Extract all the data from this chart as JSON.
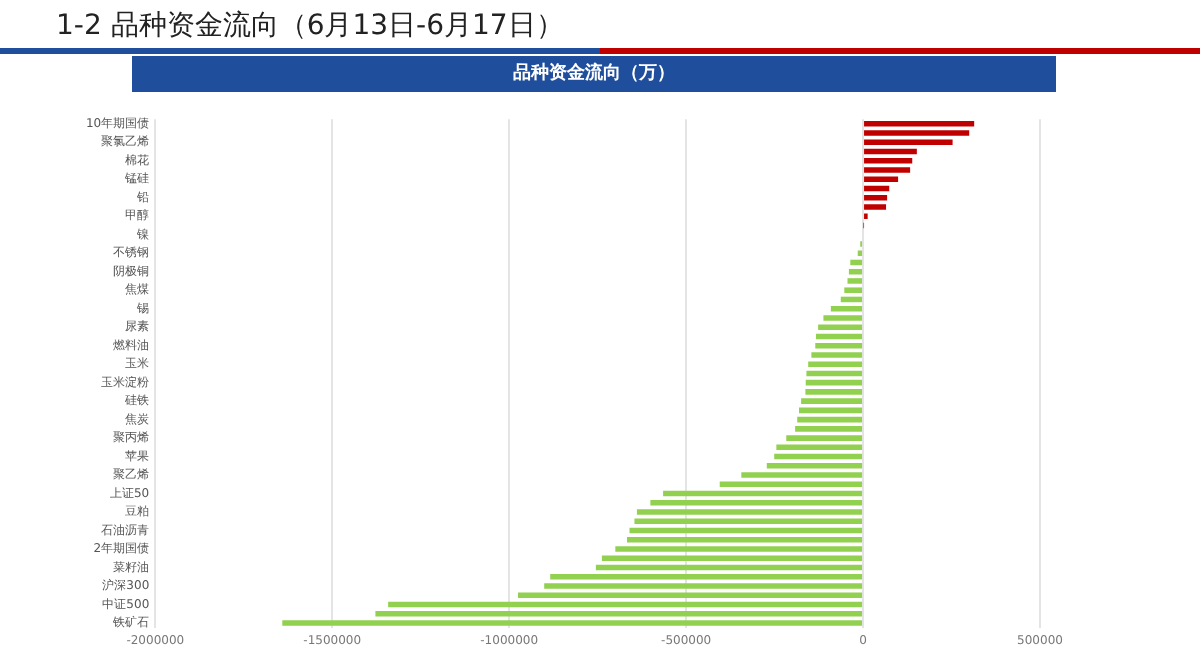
{
  "chart_data": {
    "type": "bar",
    "orientation": "horizontal",
    "title": "1-2  品种资金流向（6月13日-6月17日）",
    "subtitle": "品种资金流向（万）",
    "categories": [
      "10年期国债",
      null,
      "聚氯乙烯",
      null,
      "棉花",
      null,
      "锰硅",
      null,
      "铅",
      null,
      "甲醇",
      null,
      "镍",
      null,
      "不锈钢",
      null,
      "阴极铜",
      null,
      "焦煤",
      null,
      "锡",
      null,
      "尿素",
      null,
      "燃料油",
      null,
      "玉米",
      null,
      "玉米淀粉",
      null,
      "硅铁",
      null,
      "焦炭",
      null,
      "聚丙烯",
      null,
      "苹果",
      null,
      "聚乙烯",
      null,
      "上证50",
      null,
      "豆粕",
      null,
      "石油沥青",
      null,
      "2年期国债",
      null,
      "菜籽油",
      null,
      "沪深300",
      null,
      "中证500",
      null,
      "铁矿石"
    ],
    "values": [
      314000,
      300000,
      253000,
      152000,
      139000,
      133000,
      99000,
      74000,
      68000,
      65000,
      13000,
      1000,
      null,
      -8000,
      -15000,
      -36000,
      -40000,
      -44000,
      -53000,
      -63000,
      -91000,
      -112000,
      -127000,
      -133000,
      -135000,
      -146000,
      -155000,
      -160000,
      -162000,
      -163000,
      -175000,
      -181000,
      -186000,
      -192000,
      -217000,
      -245000,
      -251000,
      -272000,
      -344000,
      -405000,
      -565000,
      -601000,
      -639000,
      -646000,
      -660000,
      -667000,
      -700000,
      -738000,
      -755000,
      -884000,
      -901000,
      -975000,
      -1342000,
      -1378000,
      -1641000
    ],
    "colors": [
      "#c00000",
      "#c00000",
      "#c00000",
      "#c00000",
      "#c00000",
      "#c00000",
      "#c00000",
      "#c00000",
      "#c00000",
      "#c00000",
      "#c00000",
      "#c00000",
      "#92d050",
      "#92d050",
      "#92d050",
      "#92d050",
      "#92d050",
      "#92d050",
      "#92d050",
      "#92d050",
      "#92d050",
      "#92d050",
      "#92d050",
      "#92d050",
      "#92d050",
      "#92d050",
      "#92d050",
      "#92d050",
      "#92d050",
      "#92d050",
      "#92d050",
      "#92d050",
      "#92d050",
      "#92d050",
      "#92d050",
      "#92d050",
      "#92d050",
      "#92d050",
      "#92d050",
      "#92d050",
      "#92d050",
      "#92d050",
      "#92d050",
      "#92d050",
      "#92d050",
      "#92d050",
      "#92d050",
      "#92d050",
      "#92d050",
      "#92d050",
      "#92d050",
      "#92d050",
      "#92d050",
      "#92d050",
      "#92d050"
    ],
    "xlim": [
      -2000000,
      500000
    ],
    "xticks": [
      -2000000,
      -1500000,
      -1000000,
      -500000,
      0,
      500000
    ],
    "grid": "x",
    "legend": false
  }
}
